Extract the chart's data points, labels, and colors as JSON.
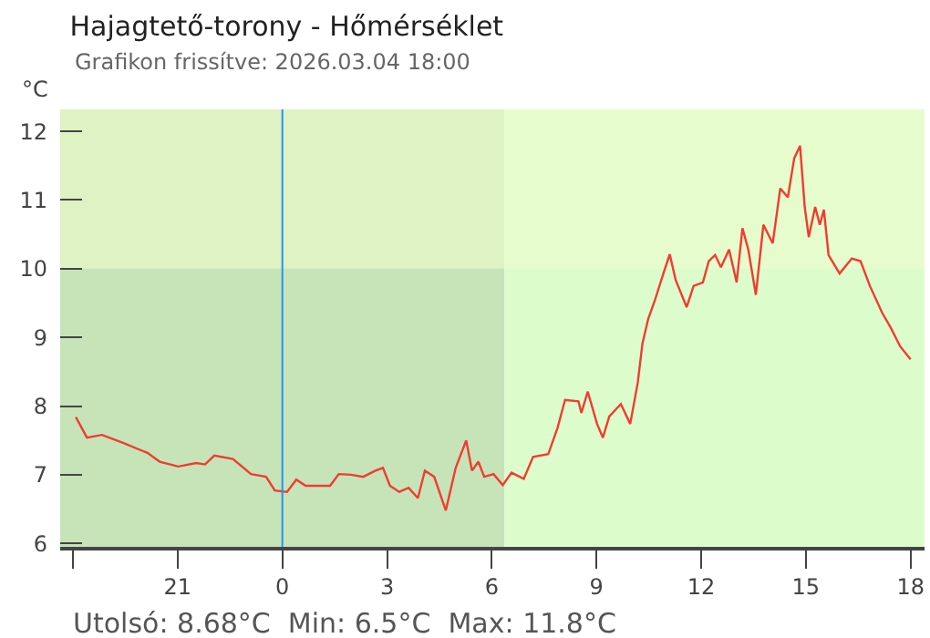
{
  "chart_data": {
    "type": "line",
    "title": "Hajagtető-torony - Hőmérséklet",
    "subtitle": "Grafikon frissítve: 2026.03.04 18:00",
    "ylabel": "°C",
    "x": [
      "2026-03-03T18:05",
      "2026-03-03T18:24",
      "2026-03-03T18:50",
      "2026-03-03T19:27",
      "2026-03-03T19:53",
      "2026-03-03T20:08",
      "2026-03-03T20:29",
      "2026-03-03T21:01",
      "2026-03-03T21:32",
      "2026-03-03T21:47",
      "2026-03-03T22:03",
      "2026-03-03T22:35",
      "2026-03-03T23:06",
      "2026-03-03T23:32",
      "2026-03-03T23:47",
      "2026-03-04T00:08",
      "2026-03-04T00:24",
      "2026-03-04T00:40",
      "2026-03-04T01:01",
      "2026-03-04T01:22",
      "2026-03-04T01:37",
      "2026-03-04T01:58",
      "2026-03-04T02:19",
      "2026-03-04T02:40",
      "2026-03-04T02:53",
      "2026-03-04T03:05",
      "2026-03-04T03:21",
      "2026-03-04T03:37",
      "2026-03-04T03:53",
      "2026-03-04T04:05",
      "2026-03-04T04:21",
      "2026-03-04T04:41",
      "2026-03-04T04:58",
      "2026-03-04T05:16",
      "2026-03-04T05:26",
      "2026-03-04T05:37",
      "2026-03-04T05:47",
      "2026-03-04T06:03",
      "2026-03-04T06:19",
      "2026-03-04T06:34",
      "2026-03-04T06:55",
      "2026-03-04T07:11",
      "2026-03-04T07:37",
      "2026-03-04T07:53",
      "2026-03-04T08:06",
      "2026-03-04T08:29",
      "2026-03-04T08:34",
      "2026-03-04T08:45",
      "2026-03-04T09:01",
      "2026-03-04T09:11",
      "2026-03-04T09:22",
      "2026-03-04T09:42",
      "2026-03-04T09:58",
      "2026-03-04T10:11",
      "2026-03-04T10:19",
      "2026-03-04T10:29",
      "2026-03-04T10:40",
      "2026-03-04T10:55",
      "2026-03-04T11:06",
      "2026-03-04T11:16",
      "2026-03-04T11:35",
      "2026-03-04T11:47",
      "2026-03-04T12:03",
      "2026-03-04T12:13",
      "2026-03-04T12:24",
      "2026-03-04T12:34",
      "2026-03-04T12:48",
      "2026-03-04T13:01",
      "2026-03-04T13:11",
      "2026-03-04T13:21",
      "2026-03-04T13:34",
      "2026-03-04T13:47",
      "2026-03-04T14:03",
      "2026-03-04T14:16",
      "2026-03-04T14:29",
      "2026-03-04T14:40",
      "2026-03-04T14:50",
      "2026-03-04T14:58",
      "2026-03-04T15:05",
      "2026-03-04T15:16",
      "2026-03-04T15:24",
      "2026-03-04T15:31",
      "2026-03-04T15:39",
      "2026-03-04T15:58",
      "2026-03-04T16:19",
      "2026-03-04T16:34",
      "2026-03-04T16:50",
      "2026-03-04T17:11",
      "2026-03-04T17:26",
      "2026-03-04T17:42",
      "2026-03-04T18:00"
    ],
    "series": [
      {
        "color": "#f03c32",
        "values": [
          7.84,
          7.54,
          7.58,
          7.46,
          7.37,
          7.32,
          7.19,
          7.12,
          7.17,
          7.15,
          7.28,
          7.23,
          7.01,
          6.97,
          6.77,
          6.75,
          6.93,
          6.84,
          6.84,
          6.84,
          7.01,
          7.0,
          6.97,
          7.06,
          7.1,
          6.84,
          6.75,
          6.81,
          6.66,
          7.06,
          6.97,
          6.48,
          7.1,
          7.5,
          7.06,
          7.19,
          6.97,
          7.01,
          6.85,
          7.03,
          6.94,
          7.26,
          7.3,
          7.68,
          8.09,
          8.07,
          7.9,
          8.21,
          7.74,
          7.54,
          7.85,
          8.03,
          7.74,
          8.34,
          8.91,
          9.27,
          9.53,
          9.93,
          10.21,
          9.84,
          9.44,
          9.75,
          9.8,
          10.11,
          10.2,
          10.02,
          10.28,
          9.8,
          10.59,
          10.28,
          9.62,
          10.64,
          10.37,
          11.17,
          11.04,
          11.61,
          11.79,
          10.9,
          10.46,
          10.9,
          10.64,
          10.86,
          10.2,
          9.93,
          10.15,
          10.11,
          9.75,
          9.36,
          9.14,
          8.87,
          8.68
        ]
      }
    ],
    "xlim": [
      "2026-03-03T17:38",
      "2026-03-04T18:24"
    ],
    "ylim": [
      5.95,
      12.32
    ],
    "xticks": [
      {
        "value": "2026-03-03T18:00",
        "label": null
      },
      {
        "value": "2026-03-03T21:00",
        "label": "21"
      },
      {
        "value": "2026-03-04T00:00",
        "label": "0"
      },
      {
        "value": "2026-03-04T03:00",
        "label": "3"
      },
      {
        "value": "2026-03-04T06:00",
        "label": "6"
      },
      {
        "value": "2026-03-04T09:00",
        "label": "9"
      },
      {
        "value": "2026-03-04T12:00",
        "label": "12"
      },
      {
        "value": "2026-03-04T15:00",
        "label": "15"
      },
      {
        "value": "2026-03-04T18:00",
        "label": "18"
      }
    ],
    "yticks": [
      6,
      7,
      8,
      9,
      10,
      11,
      12
    ],
    "ref_lines": [
      {
        "axis": "x",
        "value": "2026-03-04T00:00",
        "color": "#2196f3"
      }
    ],
    "bands": [
      {
        "axis": "x",
        "from": "2026-03-03T17:38",
        "to": "2026-03-04T06:22",
        "color": "#c6e4b8"
      },
      {
        "axis": "x",
        "from": "2026-03-04T06:22",
        "to": "2026-03-04T18:24",
        "color": "#ddfccc"
      },
      {
        "axis": "y",
        "from": 10,
        "to": 12.32,
        "color": "#eefccc"
      }
    ],
    "annotations": [
      "Utolsó: 8.68°C  Min: 6.5°C  Max: 11.8°C"
    ],
    "grid": false,
    "marker": "none",
    "line_style": "solid"
  }
}
